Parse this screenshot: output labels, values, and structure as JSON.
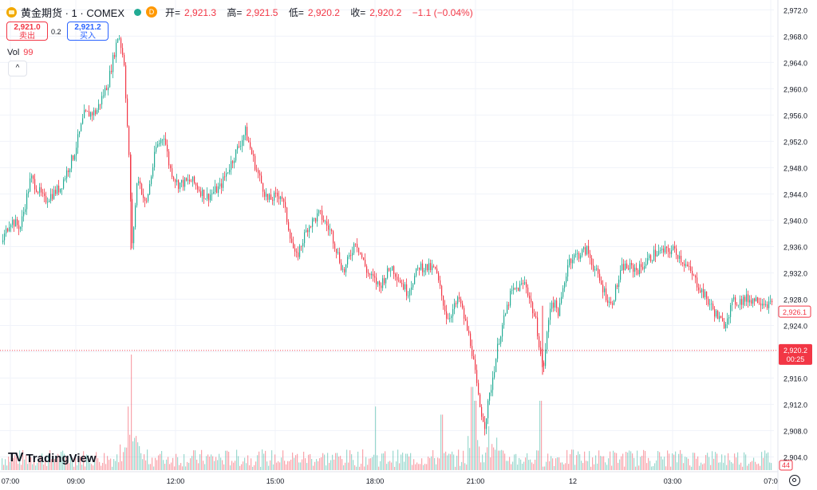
{
  "header": {
    "symbol": "黄金期货 · 1 · COMEX",
    "open_label": "开=",
    "open": "2,921.3",
    "high_label": "高=",
    "high": "2,921.5",
    "low_label": "低=",
    "low": "2,920.2",
    "close_label": "收=",
    "close": "2,920.2",
    "change": "−1.1 (−0.04%)",
    "interval_badge": "D"
  },
  "trade": {
    "sell_price": "2,921.0",
    "sell_label": "卖出",
    "spread": "0.2",
    "buy_price": "2,921.2",
    "buy_label": "买入"
  },
  "volume_indicator": {
    "label": "Vol",
    "value": "99"
  },
  "brand": {
    "name": "TradingView"
  },
  "colors": {
    "up": "#22ab94",
    "down": "#f23645",
    "accent": "#2962ff"
  },
  "chart_data": {
    "type": "candlestick",
    "y_axis": {
      "ticks": [
        2904.0,
        2908.0,
        2912.0,
        2916.0,
        2920.0,
        2924.0,
        2928.0,
        2932.0,
        2936.0,
        2940.0,
        2944.0,
        2948.0,
        2952.0,
        2956.0,
        2960.0,
        2964.0,
        2968.0,
        2972.0
      ],
      "range": [
        2902.0,
        2973.5
      ]
    },
    "x_axis": {
      "ticks": [
        "07:00",
        "09:00",
        "12:00",
        "15:00",
        "18:00",
        "21:00",
        "12",
        "03:00",
        "07:0"
      ]
    },
    "price_path": [
      [
        0,
        2936.0
      ],
      [
        12,
        2940.0
      ],
      [
        25,
        2939.0
      ],
      [
        38,
        2946.5
      ],
      [
        55,
        2943.0
      ],
      [
        75,
        2945.0
      ],
      [
        92,
        2950.0
      ],
      [
        105,
        2956.0
      ],
      [
        120,
        2956.5
      ],
      [
        135,
        2961.0
      ],
      [
        148,
        2968.5
      ],
      [
        155,
        2964.0
      ],
      [
        162,
        2947.0
      ],
      [
        165,
        2936.0
      ],
      [
        172,
        2947.0
      ],
      [
        182,
        2942.0
      ],
      [
        195,
        2951.0
      ],
      [
        205,
        2953.0
      ],
      [
        212,
        2948.0
      ],
      [
        222,
        2945.5
      ],
      [
        240,
        2946.0
      ],
      [
        258,
        2943.5
      ],
      [
        275,
        2945.0
      ],
      [
        290,
        2949.0
      ],
      [
        307,
        2953.5
      ],
      [
        320,
        2948.0
      ],
      [
        335,
        2943.0
      ],
      [
        352,
        2944.0
      ],
      [
        370,
        2934.0
      ],
      [
        385,
        2939.0
      ],
      [
        400,
        2941.0
      ],
      [
        415,
        2938.0
      ],
      [
        430,
        2932.0
      ],
      [
        445,
        2937.0
      ],
      [
        460,
        2932.0
      ],
      [
        475,
        2930.0
      ],
      [
        490,
        2933.0
      ],
      [
        510,
        2929.0
      ],
      [
        525,
        2933.0
      ],
      [
        545,
        2932.5
      ],
      [
        560,
        2925.0
      ],
      [
        575,
        2928.0
      ],
      [
        590,
        2921.0
      ],
      [
        600,
        2912.0
      ],
      [
        607,
        2909.0
      ],
      [
        614,
        2914.0
      ],
      [
        625,
        2922.0
      ],
      [
        640,
        2929.0
      ],
      [
        658,
        2930.5
      ],
      [
        672,
        2924.0
      ],
      [
        680,
        2917.0
      ],
      [
        690,
        2928.0
      ],
      [
        700,
        2926.0
      ],
      [
        712,
        2934.0
      ],
      [
        735,
        2935.5
      ],
      [
        750,
        2931.0
      ],
      [
        765,
        2927.0
      ],
      [
        780,
        2933.0
      ],
      [
        800,
        2932.5
      ],
      [
        820,
        2935.0
      ],
      [
        845,
        2935.5
      ],
      [
        860,
        2933.0
      ],
      [
        875,
        2930.0
      ],
      [
        890,
        2927.0
      ],
      [
        906,
        2924.0
      ],
      [
        918,
        2927.5
      ],
      [
        935,
        2928.0
      ],
      [
        950,
        2928.0
      ],
      [
        968,
        2927.0
      ]
    ],
    "volume_spikes": [
      [
        164,
        1.0
      ],
      [
        160,
        0.55
      ],
      [
        470,
        0.55
      ],
      [
        591,
        0.72
      ],
      [
        595,
        0.6
      ],
      [
        612,
        0.38
      ],
      [
        677,
        0.6
      ],
      [
        553,
        0.48
      ]
    ],
    "last_close": "2,926.1",
    "current_price": "2,920.2",
    "countdown": "00:25",
    "last_volume": "44"
  }
}
